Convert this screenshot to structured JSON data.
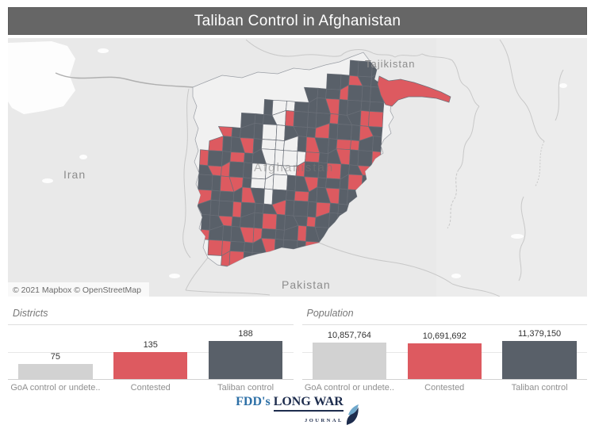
{
  "title": "Taliban Control in Afghanistan",
  "map": {
    "labels": {
      "iran": "Iran",
      "afghanistan": "Afghanistan",
      "tajikistan": "Tajikistan",
      "pakistan": "Pakistan"
    },
    "attribution": "© 2021 Mapbox © OpenStreetMap",
    "colors": {
      "taliban_control": "#596069",
      "contested": "#dd5a60",
      "goa_district": "#f1f1f1",
      "district_border": "#6a6f78",
      "basemap_land": "#e9e9e9"
    },
    "mosaic_rows": [
      "...............DDD..",
      ".............DDRDD..",
      "...........DDDRDDD..",
      ".......DLLDDDRDDDD..",
      ".....DDDLRDDDRDDRR..",
      "...RDDDLLDDDRDDDRD..",
      "..RDDRDLLLDRDDRRDD..",
      ".RDDRDDLLLLRDDRDDR..",
      ".DRRDDLLLLRDDRDDRD..",
      ".DDRRDLLLDDRDDDRDR..",
      ".RDDDRDLDDRDDRDDD...",
      ".DDDRDDDRDDDRDDD....",
      ".DDRDDDRDDDRDDD.....",
      ".RDDDRRDDDRDD.......",
      "..RRDDDRDDDR........",
      "...RRDDDRD.........."
    ]
  },
  "chart_data": [
    {
      "type": "bar",
      "title": "Districts",
      "categories": [
        "GoA control or undete..",
        "Contested",
        "Taliban control"
      ],
      "values": [
        75,
        135,
        188
      ],
      "value_labels": [
        "75",
        "135",
        "188"
      ],
      "colors": [
        "#d2d2d2",
        "#dd5a60",
        "#596069"
      ],
      "ylim": [
        0,
        210
      ],
      "grid": true,
      "legend": "none"
    },
    {
      "type": "bar",
      "title": "Population",
      "categories": [
        "GoA control or undete..",
        "Contested",
        "Taliban control"
      ],
      "values": [
        10857764,
        10691692,
        11379150
      ],
      "value_labels": [
        "10,857,764",
        "10,691,692",
        "11,379,150"
      ],
      "colors": [
        "#d2d2d2",
        "#dd5a60",
        "#596069"
      ],
      "ylim": [
        0,
        12500000
      ],
      "grid": true,
      "legend": "none"
    }
  ],
  "footer": {
    "brand_fdds": "FDD's",
    "brand_longwar": "LONG WAR",
    "brand_journal": "JOURNAL"
  }
}
